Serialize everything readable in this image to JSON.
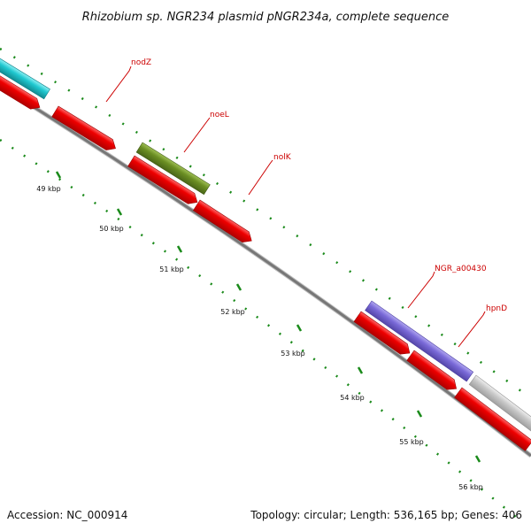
{
  "title": "Rhizobium sp. NGR234 plasmid pNGR234a, complete sequence",
  "accession": "Accession: NC_000914",
  "summary": "Topology: circular; Length: 536,165 bp; Genes: 406",
  "ruler": [
    {
      "label": "49 kbp"
    },
    {
      "label": "50 kbp"
    },
    {
      "label": "51 kbp"
    },
    {
      "label": "52 kbp"
    },
    {
      "label": "53 kbp"
    },
    {
      "label": "54 kbp"
    },
    {
      "label": "55 kbp"
    },
    {
      "label": "56 kbp"
    }
  ],
  "gene_labels": [
    {
      "name": "nodZ"
    },
    {
      "name": "noeL"
    },
    {
      "name": "nolK"
    },
    {
      "name": "NGR_a00430"
    },
    {
      "name": "hpnD"
    }
  ],
  "colors": {
    "backbone": "#808080",
    "cds_red": "#ee0000",
    "cyan_feature": "#20c8d0",
    "olive_feature": "#6b8e23",
    "purple_feature": "#7a6ad8",
    "gray_feature": "#c8c8c8",
    "tick_green": "#1a8a1a",
    "label_red": "#cc0000"
  }
}
